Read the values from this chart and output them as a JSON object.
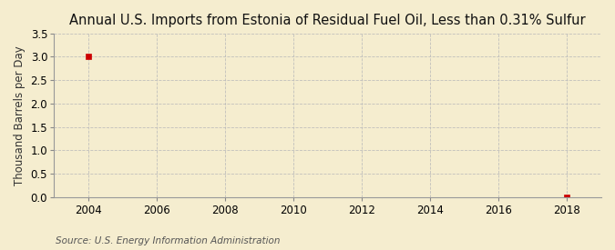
{
  "title": "Annual U.S. Imports from Estonia of Residual Fuel Oil, Less than 0.31% Sulfur",
  "ylabel": "Thousand Barrels per Day",
  "source": "Source: U.S. Energy Information Administration",
  "background_color": "#f5edcf",
  "plot_background_color": "#f5edcf",
  "xlim": [
    2003,
    2019
  ],
  "ylim": [
    0,
    3.5
  ],
  "yticks": [
    0.0,
    0.5,
    1.0,
    1.5,
    2.0,
    2.5,
    3.0,
    3.5
  ],
  "xticks": [
    2004,
    2006,
    2008,
    2010,
    2012,
    2014,
    2016,
    2018
  ],
  "data_x": [
    2004,
    2018
  ],
  "data_y": [
    3.0,
    0.0
  ],
  "marker_color": "#cc0000",
  "grid_color": "#bbbbbb",
  "title_fontsize": 10.5,
  "label_fontsize": 8.5,
  "tick_fontsize": 8.5,
  "source_fontsize": 7.5
}
